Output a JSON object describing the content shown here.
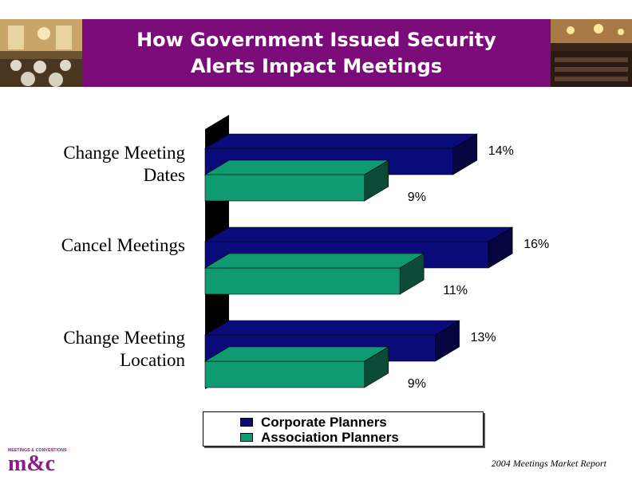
{
  "header": {
    "title": "How Government Issued Security Alerts Impact Meetings"
  },
  "footer": {
    "logo_text": "m&c",
    "logo_caption": "MEETINGS & CONVENTIONS",
    "report": "2004 Meetings Market Report"
  },
  "colors": {
    "title_bg": "#7c0b7a",
    "corporate": "#0a0a78",
    "association": "#0f9a72"
  },
  "chart_data": {
    "type": "bar",
    "orientation": "horizontal",
    "style": "3d",
    "categories": [
      "Change Meeting Dates",
      "Cancel Meetings",
      "Change Meeting Location"
    ],
    "series": [
      {
        "name": "Corporate Planners",
        "values": [
          14,
          16,
          13
        ],
        "labels": [
          "14%",
          "16%",
          "13%"
        ]
      },
      {
        "name": "Association Planners",
        "values": [
          9,
          11,
          9
        ],
        "labels": [
          "9%",
          "11%",
          "9%"
        ]
      }
    ],
    "xlim": [
      0,
      20
    ],
    "grid": false,
    "legend_position": "bottom"
  }
}
